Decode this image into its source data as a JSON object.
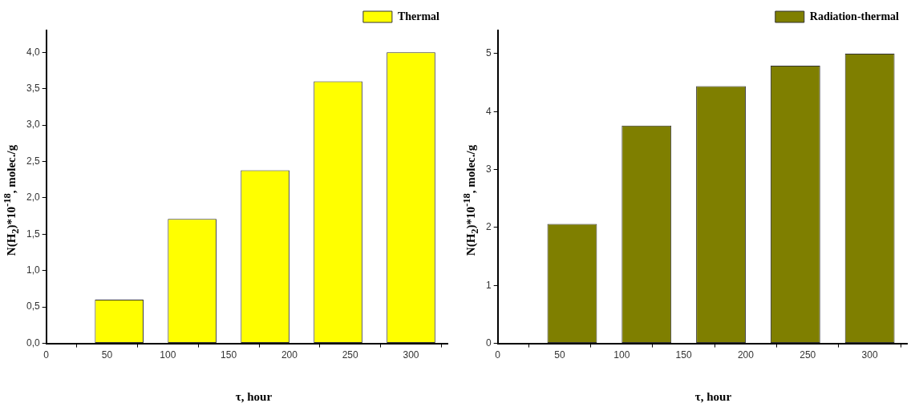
{
  "chart_data": [
    {
      "type": "bar",
      "x": [
        60,
        120,
        180,
        240,
        300
      ],
      "series": [
        {
          "name": "Thermal",
          "color": "#ffff00",
          "values": [
            0.6,
            1.71,
            2.38,
            3.6,
            4.0
          ]
        }
      ],
      "xlabel": "τ, hour",
      "ylabel": "N(H$_{2}$)*10$^{-18}$, molec./g",
      "xlim": [
        0,
        330
      ],
      "xticks": [
        0,
        50,
        100,
        150,
        200,
        250,
        300
      ],
      "ylim": [
        0,
        4.3
      ],
      "yticks": [
        {
          "value": 0,
          "label": "0,0"
        },
        {
          "value": 0.5,
          "label": "0,5"
        },
        {
          "value": 1,
          "label": "1,0"
        },
        {
          "value": 1.5,
          "label": "1,5"
        },
        {
          "value": 2,
          "label": "2,0"
        },
        {
          "value": 2.5,
          "label": "2,5"
        },
        {
          "value": 3,
          "label": "3,0"
        },
        {
          "value": 3.5,
          "label": "3,5"
        },
        {
          "value": 4,
          "label": "4,0"
        }
      ],
      "grid": false,
      "legend": "top right"
    },
    {
      "type": "bar",
      "x": [
        60,
        120,
        180,
        240,
        300
      ],
      "series": [
        {
          "name": "Radiation-thermal",
          "color": "#7f7f00",
          "values": [
            2.06,
            3.76,
            4.44,
            4.79,
            5.0
          ]
        }
      ],
      "xlabel": "τ, hour",
      "ylabel": "N(H$_{2}$)*10$^{-18}$, molec./g",
      "xlim": [
        0,
        330
      ],
      "xticks": [
        0,
        50,
        100,
        150,
        200,
        250,
        300
      ],
      "ylim": [
        0,
        5.4
      ],
      "yticks": [
        0,
        1,
        2,
        3,
        4,
        5
      ],
      "grid": false,
      "legend": "top right"
    }
  ]
}
